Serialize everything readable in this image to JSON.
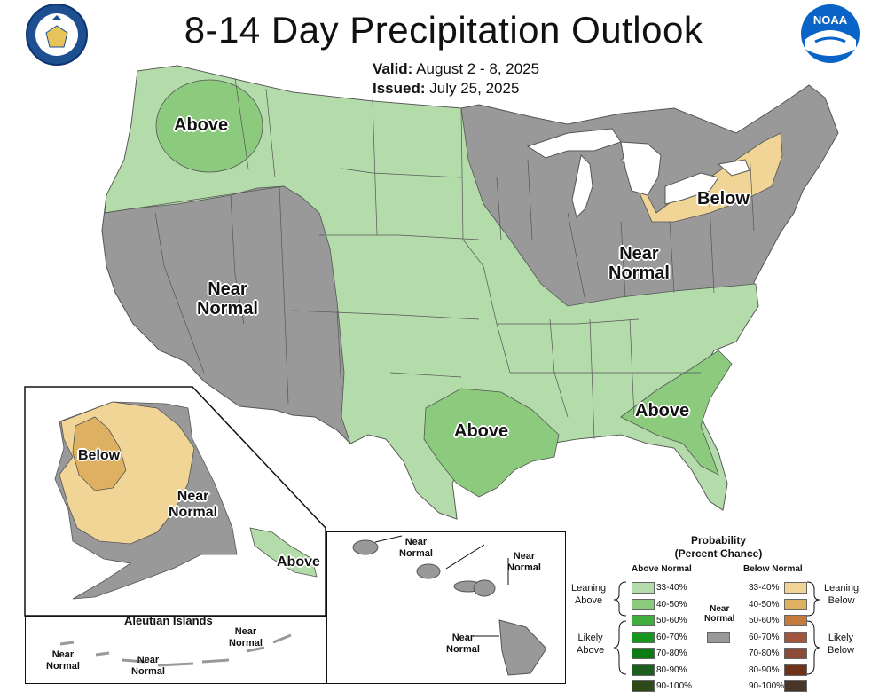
{
  "header": {
    "title": "8-14 Day Precipitation Outlook",
    "valid_label": "Valid:",
    "valid_value": "August 2 - 8, 2025",
    "issued_label": "Issued:",
    "issued_value": "July 25, 2025",
    "logo_left": "department-of-commerce-seal",
    "logo_right": "noaa-logo",
    "logo_right_text": "NOAA"
  },
  "map_labels": {
    "nw_above": "Above",
    "west_near_normal": "Near\nNormal",
    "east_near_normal": "Near\nNormal",
    "ne_below": "Below",
    "tx_above": "Above",
    "se_above": "Above"
  },
  "alaska": {
    "below": "Below",
    "near_normal": "Near\nNormal",
    "above": "Above"
  },
  "aleutians": {
    "title": "Aleutian Islands",
    "near_normal_1": "Near\nNormal",
    "near_normal_2": "Near\nNormal",
    "near_normal_3": "Near\nNormal"
  },
  "hawaii": {
    "near_normal_1": "Near\nNormal",
    "near_normal_2": "Near\nNormal",
    "near_normal_3": "Near\nNormal"
  },
  "legend": {
    "title_line1": "Probability",
    "title_line2": "(Percent Chance)",
    "above_header": "Above Normal",
    "below_header": "Below Normal",
    "near_normal": "Near\nNormal",
    "leaning_above": "Leaning\nAbove",
    "likely_above": "Likely\nAbove",
    "leaning_below": "Leaning\nBelow",
    "likely_below": "Likely\nBelow",
    "near_color": "#999999",
    "above_categories": [
      {
        "label": "33-40%",
        "color": "#b3dcaa"
      },
      {
        "label": "40-50%",
        "color": "#8ccb7e"
      },
      {
        "label": "50-60%",
        "color": "#3fae3f"
      },
      {
        "label": "60-70%",
        "color": "#16961f"
      },
      {
        "label": "70-80%",
        "color": "#0a7a15"
      },
      {
        "label": "80-90%",
        "color": "#1b5e20"
      },
      {
        "label": "90-100%",
        "color": "#2e4a1a"
      }
    ],
    "below_categories": [
      {
        "label": "33-40%",
        "color": "#f0d596"
      },
      {
        "label": "40-50%",
        "color": "#ddb062"
      },
      {
        "label": "50-60%",
        "color": "#c47a3c"
      },
      {
        "label": "60-70%",
        "color": "#a4553b"
      },
      {
        "label": "70-80%",
        "color": "#8c4b36"
      },
      {
        "label": "80-90%",
        "color": "#6e3318"
      },
      {
        "label": "90-100%",
        "color": "#4a3428"
      }
    ]
  },
  "colors": {
    "above_light": "#b3dcaa",
    "above_medium": "#8ccb7e",
    "near_normal": "#999999",
    "below_light": "#f0d596",
    "below_medium": "#ddb062",
    "water": "#ffffff",
    "border": "#555555"
  }
}
